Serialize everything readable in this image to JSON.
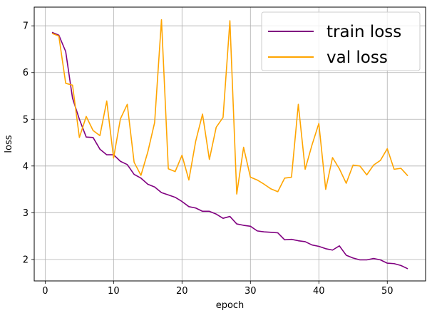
{
  "chart_data": {
    "type": "line",
    "xlabel": "epoch",
    "ylabel": "loss",
    "xlim": [
      -1.6,
      55.6
    ],
    "ylim": [
      1.54,
      7.4
    ],
    "xticks": [
      0,
      10,
      20,
      30,
      40,
      50
    ],
    "yticks": [
      2,
      3,
      4,
      5,
      6,
      7
    ],
    "grid": true,
    "legend_position": "top-right",
    "x": [
      1,
      2,
      3,
      4,
      5,
      6,
      7,
      8,
      9,
      10,
      11,
      12,
      13,
      14,
      15,
      16,
      17,
      18,
      19,
      20,
      21,
      22,
      23,
      24,
      25,
      26,
      27,
      28,
      29,
      30,
      31,
      32,
      33,
      34,
      35,
      36,
      37,
      38,
      39,
      40,
      41,
      42,
      43,
      44,
      45,
      46,
      47,
      48,
      49,
      50,
      51,
      52,
      53
    ],
    "series": [
      {
        "name": "train loss",
        "color": "#800080",
        "values": [
          6.86,
          6.8,
          6.45,
          5.45,
          5.0,
          4.62,
          4.61,
          4.36,
          4.24,
          4.24,
          4.1,
          4.03,
          3.82,
          3.74,
          3.61,
          3.55,
          3.43,
          3.38,
          3.33,
          3.24,
          3.13,
          3.1,
          3.03,
          3.03,
          2.97,
          2.88,
          2.92,
          2.76,
          2.73,
          2.71,
          2.61,
          2.59,
          2.58,
          2.57,
          2.42,
          2.43,
          2.4,
          2.38,
          2.31,
          2.28,
          2.23,
          2.2,
          2.29,
          2.09,
          2.03,
          1.99,
          1.99,
          2.02,
          1.99,
          1.92,
          1.91,
          1.87,
          1.8
        ]
      },
      {
        "name": "val loss",
        "color": "#ffa500",
        "values": [
          6.84,
          6.78,
          5.77,
          5.73,
          4.61,
          5.06,
          4.76,
          4.65,
          5.39,
          4.17,
          5.01,
          5.32,
          4.08,
          3.8,
          4.3,
          4.93,
          7.13,
          3.94,
          3.88,
          4.23,
          3.7,
          4.53,
          5.11,
          4.14,
          4.83,
          5.04,
          7.11,
          3.4,
          4.4,
          3.76,
          3.7,
          3.61,
          3.51,
          3.45,
          3.74,
          3.76,
          5.32,
          3.93,
          4.45,
          4.91,
          3.5,
          4.18,
          3.94,
          3.63,
          4.02,
          4.0,
          3.81,
          4.02,
          4.12,
          4.37,
          3.93,
          3.95,
          3.79
        ]
      }
    ]
  }
}
